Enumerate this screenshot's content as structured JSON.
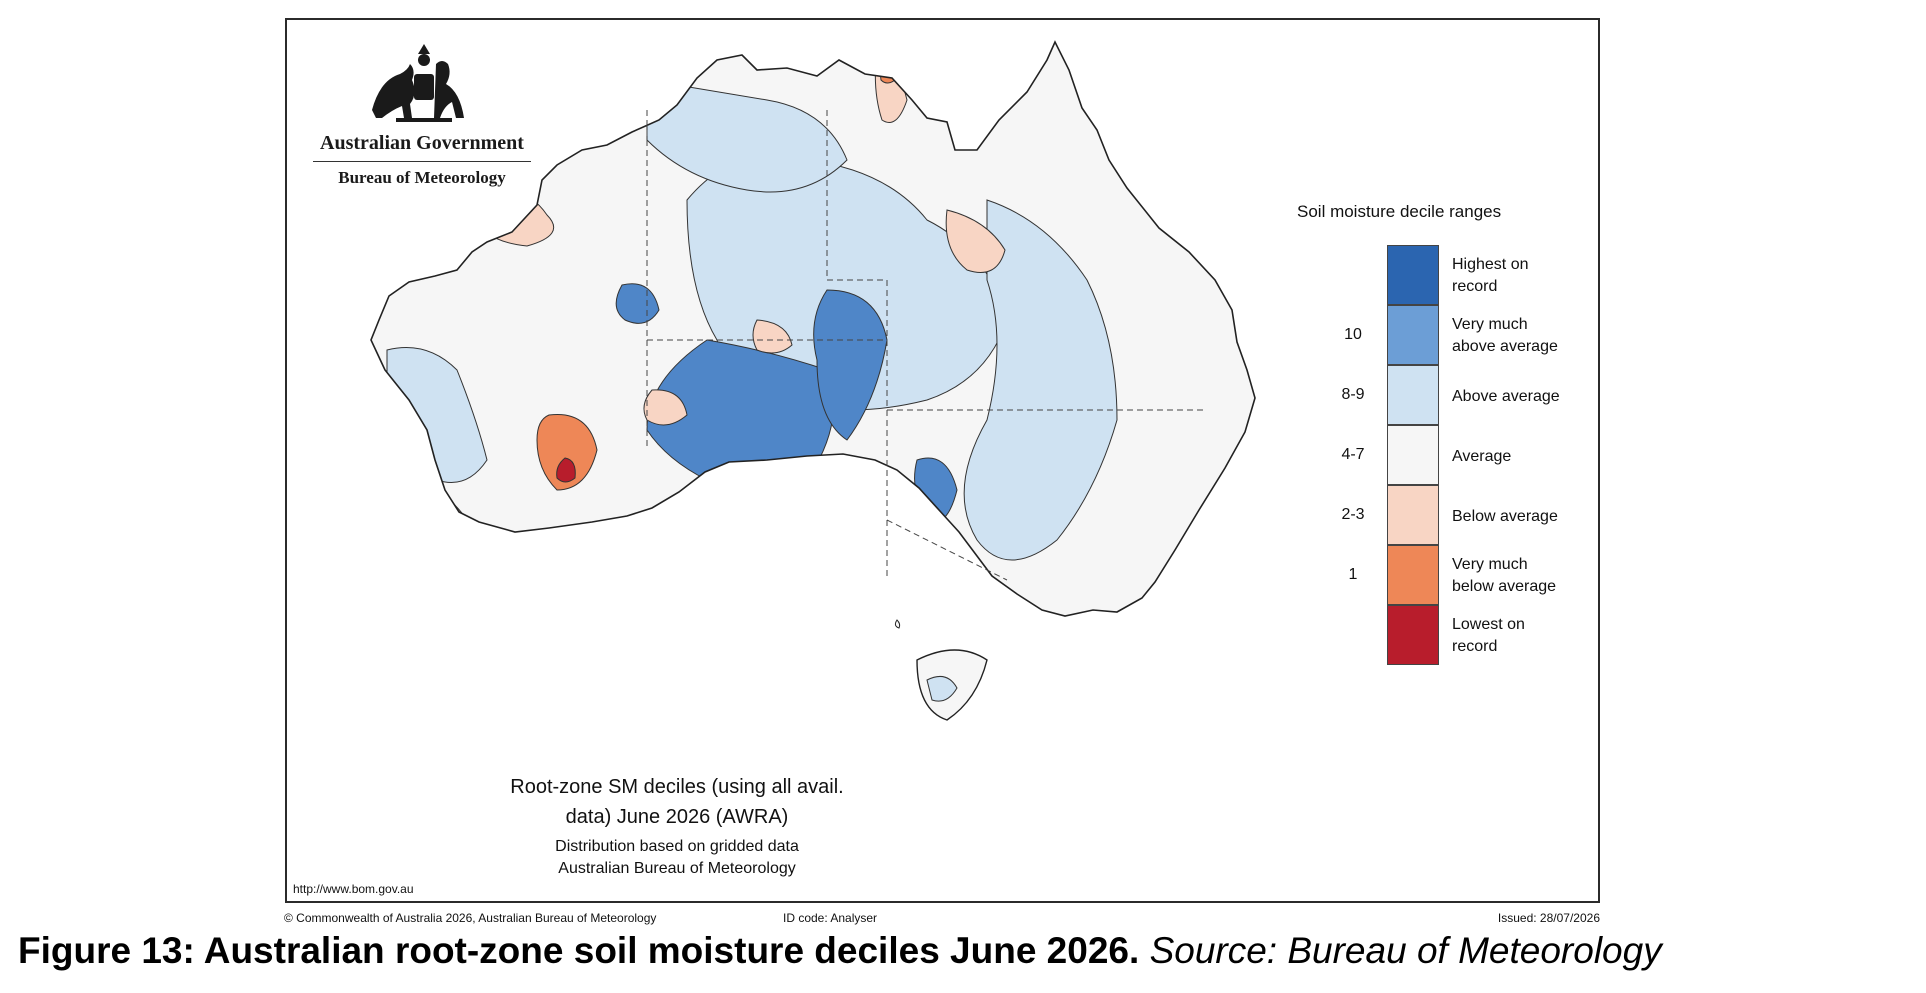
{
  "header": {
    "government": "Australian Government",
    "agency": "Bureau of Meteorology"
  },
  "legend": {
    "title": "Soil moisture decile ranges",
    "items": [
      {
        "code": "",
        "label_line1": "Highest on",
        "label_line2": "record",
        "color": "#2b65b0"
      },
      {
        "code": "10",
        "label_line1": "Very much",
        "label_line2": "above average",
        "color": "#6c9ed6"
      },
      {
        "code": "8-9",
        "label_line1": "Above average",
        "label_line2": "",
        "color": "#cfe2f2"
      },
      {
        "code": "4-7",
        "label_line1": "Average",
        "label_line2": "",
        "color": "#f6f6f6"
      },
      {
        "code": "2-3",
        "label_line1": "Below average",
        "label_line2": "",
        "color": "#f8d5c4"
      },
      {
        "code": "1",
        "label_line1": "Very much",
        "label_line2": "below average",
        "color": "#ee8757"
      },
      {
        "code": "",
        "label_line1": "Lowest on",
        "label_line2": "record",
        "color": "#b81d2c"
      }
    ]
  },
  "map_caption": {
    "line1": "Root-zone SM deciles (using all avail.",
    "line2": "data) June 2026 (AWRA)",
    "line3": "Distribution based on gridded data",
    "line4": "Australian Bureau of Meteorology"
  },
  "url": "http://www.bom.gov.au",
  "footer": {
    "copyright": "© Commonwealth of Australia 2026, Australian Bureau of Meteorology",
    "id_code": "ID code: Analyser",
    "issued": "Issued: 28/07/2026"
  },
  "figure": {
    "label": "Figure 13: Australian root-zone soil moisture deciles June 2026.",
    "source": "Source: Bureau of Meteorology"
  }
}
